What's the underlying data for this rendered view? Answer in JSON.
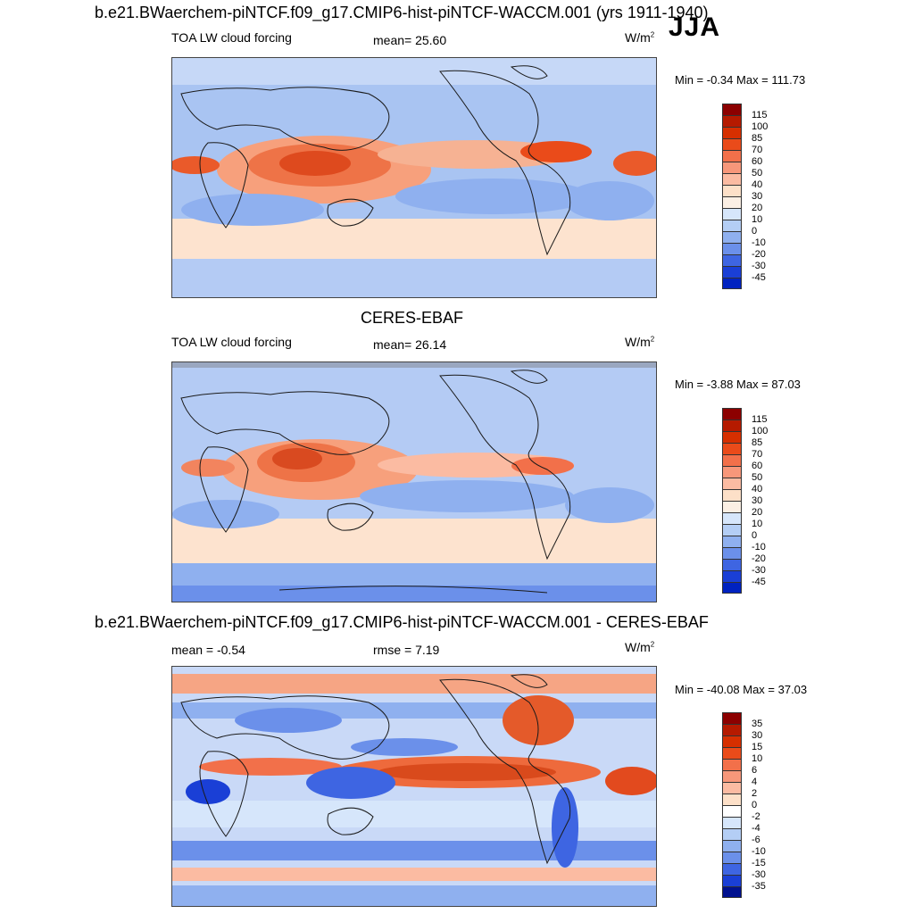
{
  "figure": {
    "top_title": "b.e21.BWaerchem-piNTCF.f09_g17.CMIP6-hist-piNTCF-WACCM.001 (yrs 1911-1940)",
    "season": "JJA",
    "units_base": "W/m",
    "units_exp": "2"
  },
  "panels": [
    {
      "title": "",
      "left_label": "TOA LW cloud forcing",
      "center_label": "mean=  25.60",
      "minmax": "Min =  -0.34 Max = 111.73",
      "colorbar_ticks": [
        "115",
        "100",
        "85",
        "70",
        "60",
        "50",
        "40",
        "30",
        "20",
        "10",
        "0",
        "-10",
        "-20",
        "-30",
        "-45"
      ]
    },
    {
      "title": "CERES-EBAF",
      "left_label": "TOA LW cloud forcing",
      "center_label": "mean=  26.14",
      "minmax": "Min =  -3.88 Max =  87.03",
      "colorbar_ticks": [
        "115",
        "100",
        "85",
        "70",
        "60",
        "50",
        "40",
        "30",
        "20",
        "10",
        "0",
        "-10",
        "-20",
        "-30",
        "-45"
      ]
    },
    {
      "title": "b.e21.BWaerchem-piNTCF.f09_g17.CMIP6-hist-piNTCF-WACCM.001 - CERES-EBAF",
      "left_label": "mean =  -0.54",
      "center_label": "rmse =   7.19",
      "minmax": "Min = -40.08 Max =  37.03",
      "colorbar_ticks": [
        "35",
        "30",
        "15",
        "10",
        "6",
        "4",
        "2",
        "0",
        "-2",
        "-4",
        "-6",
        "-10",
        "-15",
        "-30",
        "-35"
      ]
    }
  ],
  "colors": {
    "abs_scale": [
      "#8c0000",
      "#b51a00",
      "#d62f00",
      "#ea4b1a",
      "#f2704a",
      "#f7977a",
      "#fbbba2",
      "#fde0c8",
      "#ffffff",
      "#d6e6fb",
      "#b4cef5",
      "#8fb0ef",
      "#6b90ea",
      "#3e65e2",
      "#1a3fd6",
      "#0022c0",
      "#00118f"
    ],
    "abs_boxes": [
      "#8c0000",
      "#b51a00",
      "#d62f00",
      "#ea4b1a",
      "#f2704a",
      "#f7977a",
      "#fbbba2",
      "#fde0c8",
      "#fbefe4",
      "#d6e6fb",
      "#b4cef5",
      "#8fb0ef",
      "#6b90ea",
      "#3e65e2",
      "#1a3fd6",
      "#0022c0",
      "#00118f"
    ],
    "diff_boxes": [
      "#8c0000",
      "#b51a00",
      "#d62f00",
      "#ea4b1a",
      "#f2704a",
      "#f7977a",
      "#fbbba2",
      "#fde0c8",
      "#ffffff",
      "#d6e6fb",
      "#b4cef5",
      "#8fb0ef",
      "#6b90ea",
      "#3e65e2",
      "#1a3fd6",
      "#0022c0",
      "#00118f"
    ]
  }
}
